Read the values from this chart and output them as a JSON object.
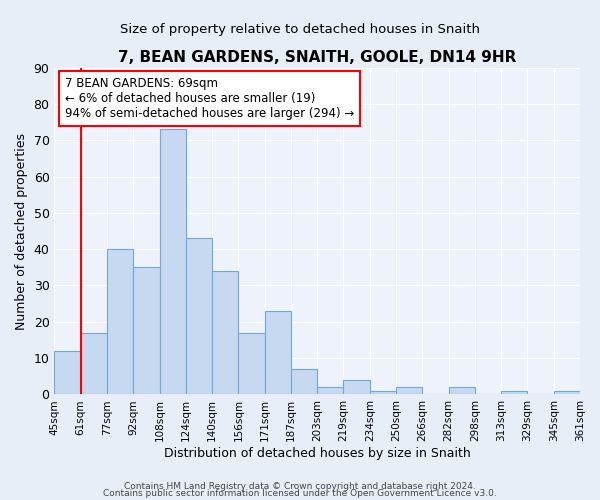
{
  "title": "7, BEAN GARDENS, SNAITH, GOOLE, DN14 9HR",
  "subtitle": "Size of property relative to detached houses in Snaith",
  "xlabel": "Distribution of detached houses by size in Snaith",
  "ylabel": "Number of detached properties",
  "bin_labels": [
    "45sqm",
    "61sqm",
    "77sqm",
    "92sqm",
    "108sqm",
    "124sqm",
    "140sqm",
    "156sqm",
    "171sqm",
    "187sqm",
    "203sqm",
    "219sqm",
    "234sqm",
    "250sqm",
    "266sqm",
    "282sqm",
    "298sqm",
    "313sqm",
    "329sqm",
    "345sqm",
    "361sqm"
  ],
  "bar_heights": [
    12,
    17,
    40,
    35,
    73,
    43,
    34,
    17,
    23,
    7,
    2,
    4,
    1,
    2,
    0,
    2,
    0,
    1,
    0,
    1
  ],
  "bar_color": "#c6d9f0",
  "bar_edge_color": "#6fa8dc",
  "vline_x": 1,
  "vline_color": "red",
  "ylim": [
    0,
    90
  ],
  "yticks": [
    0,
    10,
    20,
    30,
    40,
    50,
    60,
    70,
    80,
    90
  ],
  "annotation_text": "7 BEAN GARDENS: 69sqm\n← 6% of detached houses are smaller (19)\n94% of semi-detached houses are larger (294) →",
  "annotation_box_color": "white",
  "annotation_box_edge": "red",
  "footer1": "Contains HM Land Registry data © Crown copyright and database right 2024.",
  "footer2": "Contains public sector information licensed under the Open Government Licence v3.0.",
  "background_color": "#e8eef7",
  "plot_background": "#eef2fa"
}
